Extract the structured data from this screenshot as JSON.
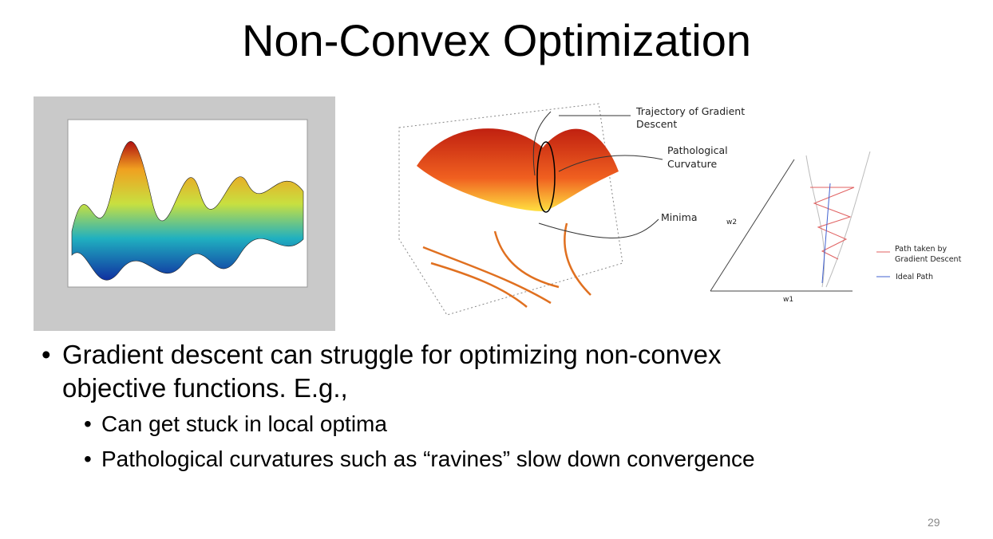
{
  "title": "Non-Convex Optimization",
  "figures": {
    "surface_plot": {
      "annotations": [
        {
          "lines": [
            "Trajectory of Gradient",
            "Descent"
          ]
        },
        {
          "lines": [
            "Pathological",
            "Curvature"
          ]
        },
        {
          "lines": [
            "Minima"
          ]
        }
      ]
    },
    "ravine_diagram": {
      "axis_labels": {
        "x": "w1",
        "y": "w2"
      },
      "legend": [
        {
          "lines": [
            "Path taken by",
            "Gradient Descent"
          ]
        },
        {
          "lines": [
            "Ideal Path"
          ]
        }
      ]
    }
  },
  "bullets": [
    {
      "lines": [
        "Gradient descent can struggle for optimizing non-convex",
        "objective functions. E.g.,"
      ],
      "sub": [
        "Can get stuck in local optima",
        "Pathological curvatures such as “ravines” slow down convergence"
      ]
    }
  ],
  "page_number": "29"
}
